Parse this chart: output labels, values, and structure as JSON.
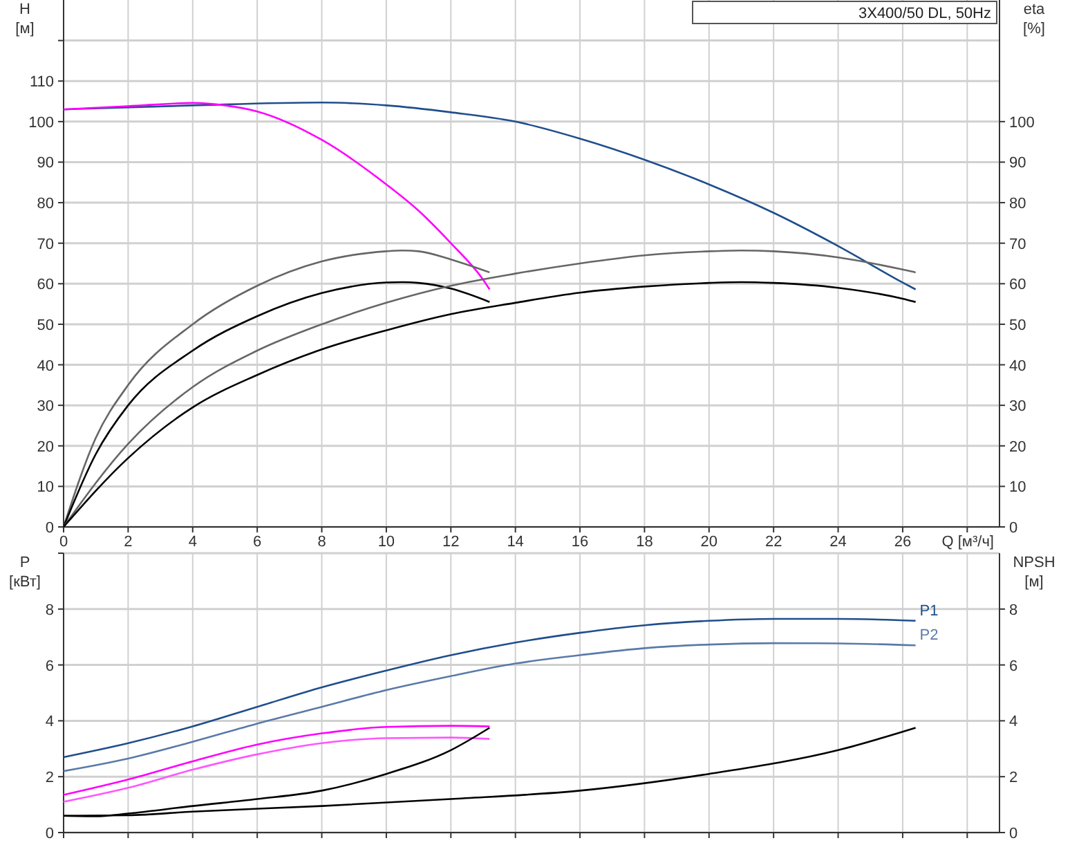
{
  "chart_data": [
    {
      "type": "line",
      "title": "3X400/50 DL, 50Hz",
      "xlabel": "Q [м³/ч]",
      "ylabel": "H [м]",
      "y2label": "eta [%]",
      "xlim": [
        0,
        29
      ],
      "xticks": [
        0,
        2,
        4,
        6,
        8,
        10,
        12,
        14,
        16,
        18,
        20,
        22,
        24,
        26,
        {
          "value": 28,
          "label": null
        }
      ],
      "ylim": [
        0,
        130
      ],
      "yticks": [
        0,
        10,
        20,
        30,
        40,
        50,
        60,
        70,
        80,
        90,
        100,
        110,
        {
          "value": 120,
          "label": null
        }
      ],
      "y2lim": [
        0,
        130
      ],
      "y2ticks": [
        0,
        10,
        20,
        30,
        40,
        50,
        60,
        70,
        80,
        90,
        100
      ],
      "grid": true,
      "series": [
        {
          "color": "#1f4e8c",
          "x": [
            0,
            4,
            8,
            10,
            12,
            14,
            16,
            18,
            20,
            22,
            24,
            26,
            26.4
          ],
          "values": [
            103,
            104,
            104.7,
            104,
            102.3,
            100,
            95.8,
            90.6,
            84.5,
            77.5,
            69.3,
            60.3,
            58.6
          ]
        },
        {
          "color": "#ff00ff",
          "x": [
            0,
            2,
            4,
            5,
            6,
            8,
            10,
            11,
            12,
            13,
            13.2
          ],
          "values": [
            103,
            103.8,
            104.6,
            104,
            102.5,
            95.5,
            84.5,
            78,
            70,
            61,
            58.6
          ]
        },
        {
          "color": "#666666",
          "x": [
            0,
            1,
            2,
            4,
            6,
            8,
            10,
            10.5,
            11,
            12,
            13.2
          ],
          "values": [
            0,
            22,
            35,
            50,
            59.5,
            65.5,
            68,
            68.2,
            68,
            66,
            62.8
          ]
        },
        {
          "color": "#000000",
          "x": [
            0,
            1,
            2,
            4,
            6,
            8,
            10,
            10.5,
            11,
            12,
            13.2
          ],
          "values": [
            0,
            18,
            30,
            43.5,
            52,
            57.7,
            60.3,
            60.4,
            60.2,
            58.8,
            55.5
          ]
        },
        {
          "color": "#666666",
          "x": [
            0,
            2,
            4,
            6,
            8,
            10,
            12,
            14,
            16,
            18,
            20,
            21,
            22,
            24,
            26,
            26.4
          ],
          "values": [
            0,
            20.5,
            34.5,
            43.5,
            50,
            55.3,
            59.5,
            62.5,
            65,
            67,
            68,
            68.2,
            68,
            66.5,
            63.5,
            62.8
          ]
        },
        {
          "color": "#000000",
          "x": [
            0,
            2,
            4,
            6,
            8,
            10,
            12,
            14,
            16,
            18,
            20,
            21,
            22,
            24,
            26,
            26.4
          ],
          "values": [
            0,
            17,
            29.5,
            37.5,
            43.8,
            48.5,
            52.5,
            55.3,
            57.8,
            59.3,
            60.2,
            60.4,
            60.2,
            59,
            56.3,
            55.5
          ]
        }
      ]
    },
    {
      "type": "line",
      "ylabel": "P [кВт]",
      "y2label": "NPSH [м]",
      "xlim": [
        0,
        29
      ],
      "xticks": [
        0,
        2,
        4,
        6,
        8,
        10,
        12,
        14,
        16,
        18,
        20,
        22,
        24,
        26,
        28
      ],
      "ylim": [
        0,
        10
      ],
      "yticks": [
        0,
        2,
        4,
        6,
        8,
        {
          "value": 10,
          "label": null
        }
      ],
      "y2lim": [
        0,
        10
      ],
      "y2ticks": [
        0,
        2,
        4,
        6,
        8
      ],
      "tick_labels": "y",
      "grid": true,
      "series": [
        {
          "name": "P1",
          "color": "#1f4e8c",
          "x": [
            0,
            2,
            4,
            6,
            8,
            10,
            12,
            14,
            16,
            18,
            20,
            22,
            24,
            26.4
          ],
          "values": [
            2.7,
            3.2,
            3.8,
            4.5,
            5.2,
            5.8,
            6.35,
            6.8,
            7.15,
            7.42,
            7.58,
            7.65,
            7.65,
            7.58
          ]
        },
        {
          "name": "P2",
          "color": "#5a7aa8",
          "x": [
            0,
            2,
            4,
            6,
            8,
            10,
            12,
            14,
            16,
            18,
            20,
            22,
            24,
            26.4
          ],
          "values": [
            2.2,
            2.65,
            3.25,
            3.9,
            4.5,
            5.1,
            5.6,
            6.05,
            6.35,
            6.6,
            6.73,
            6.78,
            6.77,
            6.7
          ]
        },
        {
          "color": "#ff00ff",
          "x": [
            0,
            2,
            4,
            6,
            8,
            10,
            12,
            13.2
          ],
          "values": [
            1.35,
            1.9,
            2.55,
            3.15,
            3.55,
            3.78,
            3.82,
            3.8
          ]
        },
        {
          "color": "#ff55ff",
          "x": [
            0,
            2,
            4,
            6,
            8,
            10,
            12,
            13.2
          ],
          "values": [
            1.1,
            1.6,
            2.25,
            2.8,
            3.2,
            3.38,
            3.4,
            3.35
          ]
        },
        {
          "color": "#000000",
          "x": [
            0,
            1,
            2,
            4,
            6,
            8,
            10,
            12,
            13.2
          ],
          "values": [
            0.6,
            0.58,
            0.68,
            0.95,
            1.2,
            1.5,
            2.1,
            2.95,
            3.75
          ]
        },
        {
          "color": "#000000",
          "x": [
            0,
            2,
            4,
            8,
            12,
            16,
            20,
            24,
            26.4
          ],
          "values": [
            0.6,
            0.62,
            0.75,
            0.95,
            1.2,
            1.5,
            2.1,
            2.95,
            3.75
          ]
        }
      ]
    }
  ]
}
